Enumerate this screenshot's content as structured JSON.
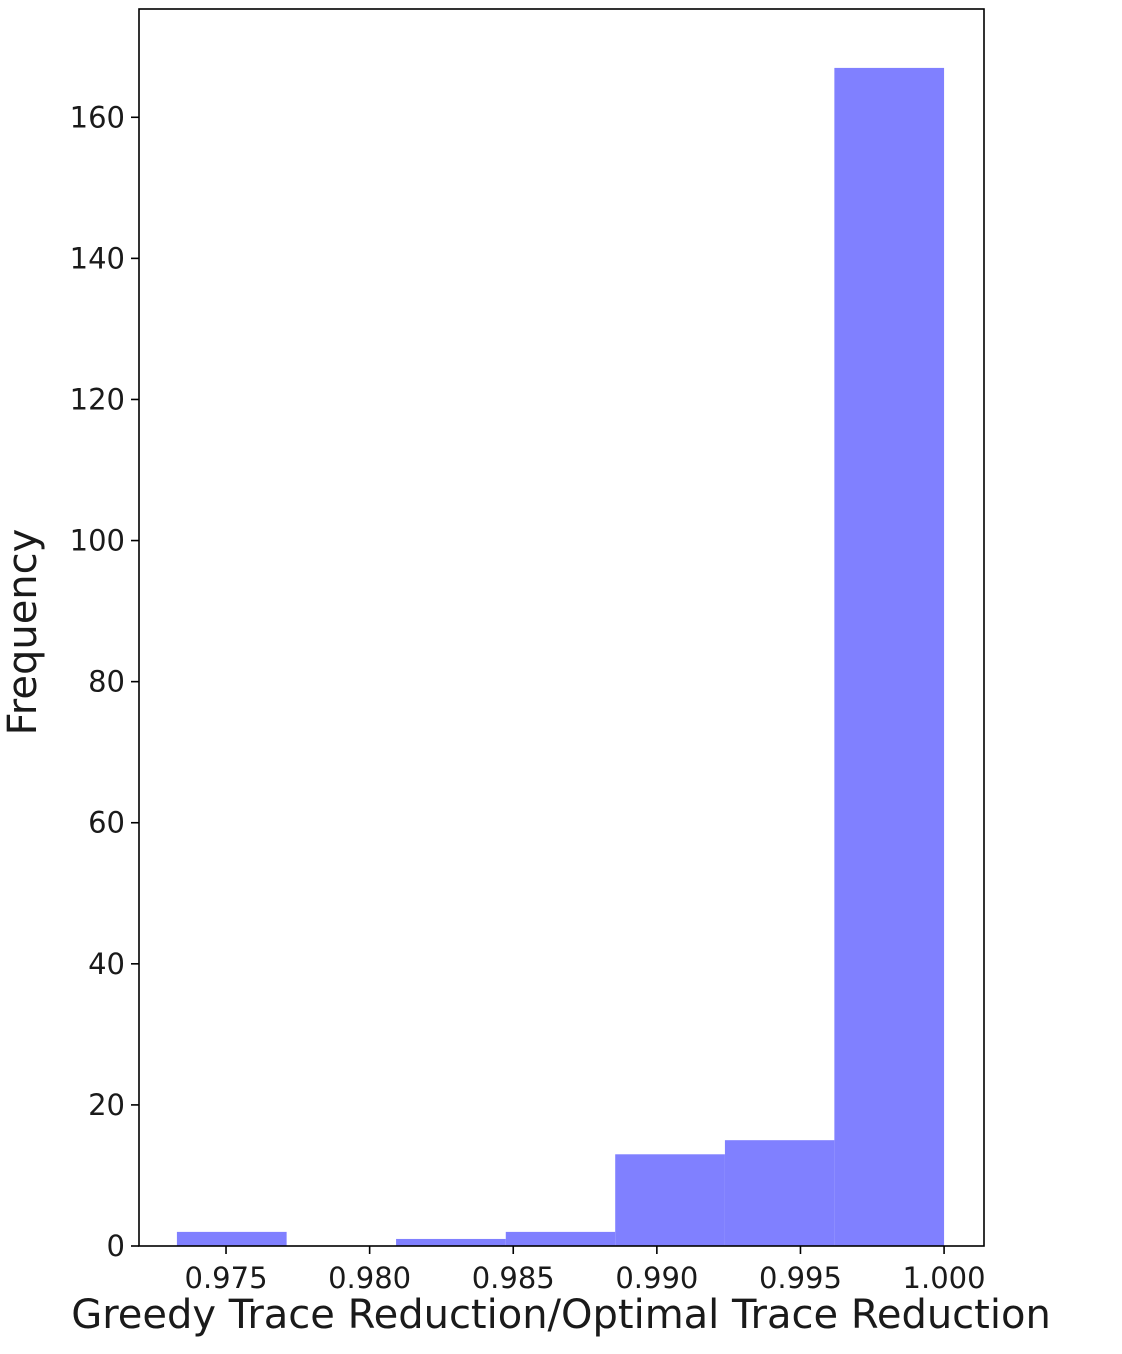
{
  "chart_data": {
    "type": "histogram",
    "x_label": "Greedy Trace Reduction/Optimal Trace Reduction",
    "y_label": "Frequency",
    "bins": [
      0.97329,
      0.97711,
      0.98092,
      0.98474,
      0.98855,
      0.99237,
      0.99618,
      1.0
    ],
    "values": [
      2,
      0,
      1,
      2,
      13,
      15,
      167
    ],
    "color": "#8080ff",
    "xlim": [
      0.97197,
      1.00139
    ],
    "xticks": [
      0.975,
      {
        "value": 0.98,
        "label": "0.980"
      },
      0.985,
      {
        "value": 0.99,
        "label": "0.990"
      },
      0.995,
      {
        "value": 1.0,
        "label": "1.000"
      }
    ],
    "ylim": [
      0,
      175.35
    ],
    "yticks": [
      0,
      20,
      40,
      60,
      80,
      100,
      120,
      140,
      160
    ],
    "grid": false
  }
}
